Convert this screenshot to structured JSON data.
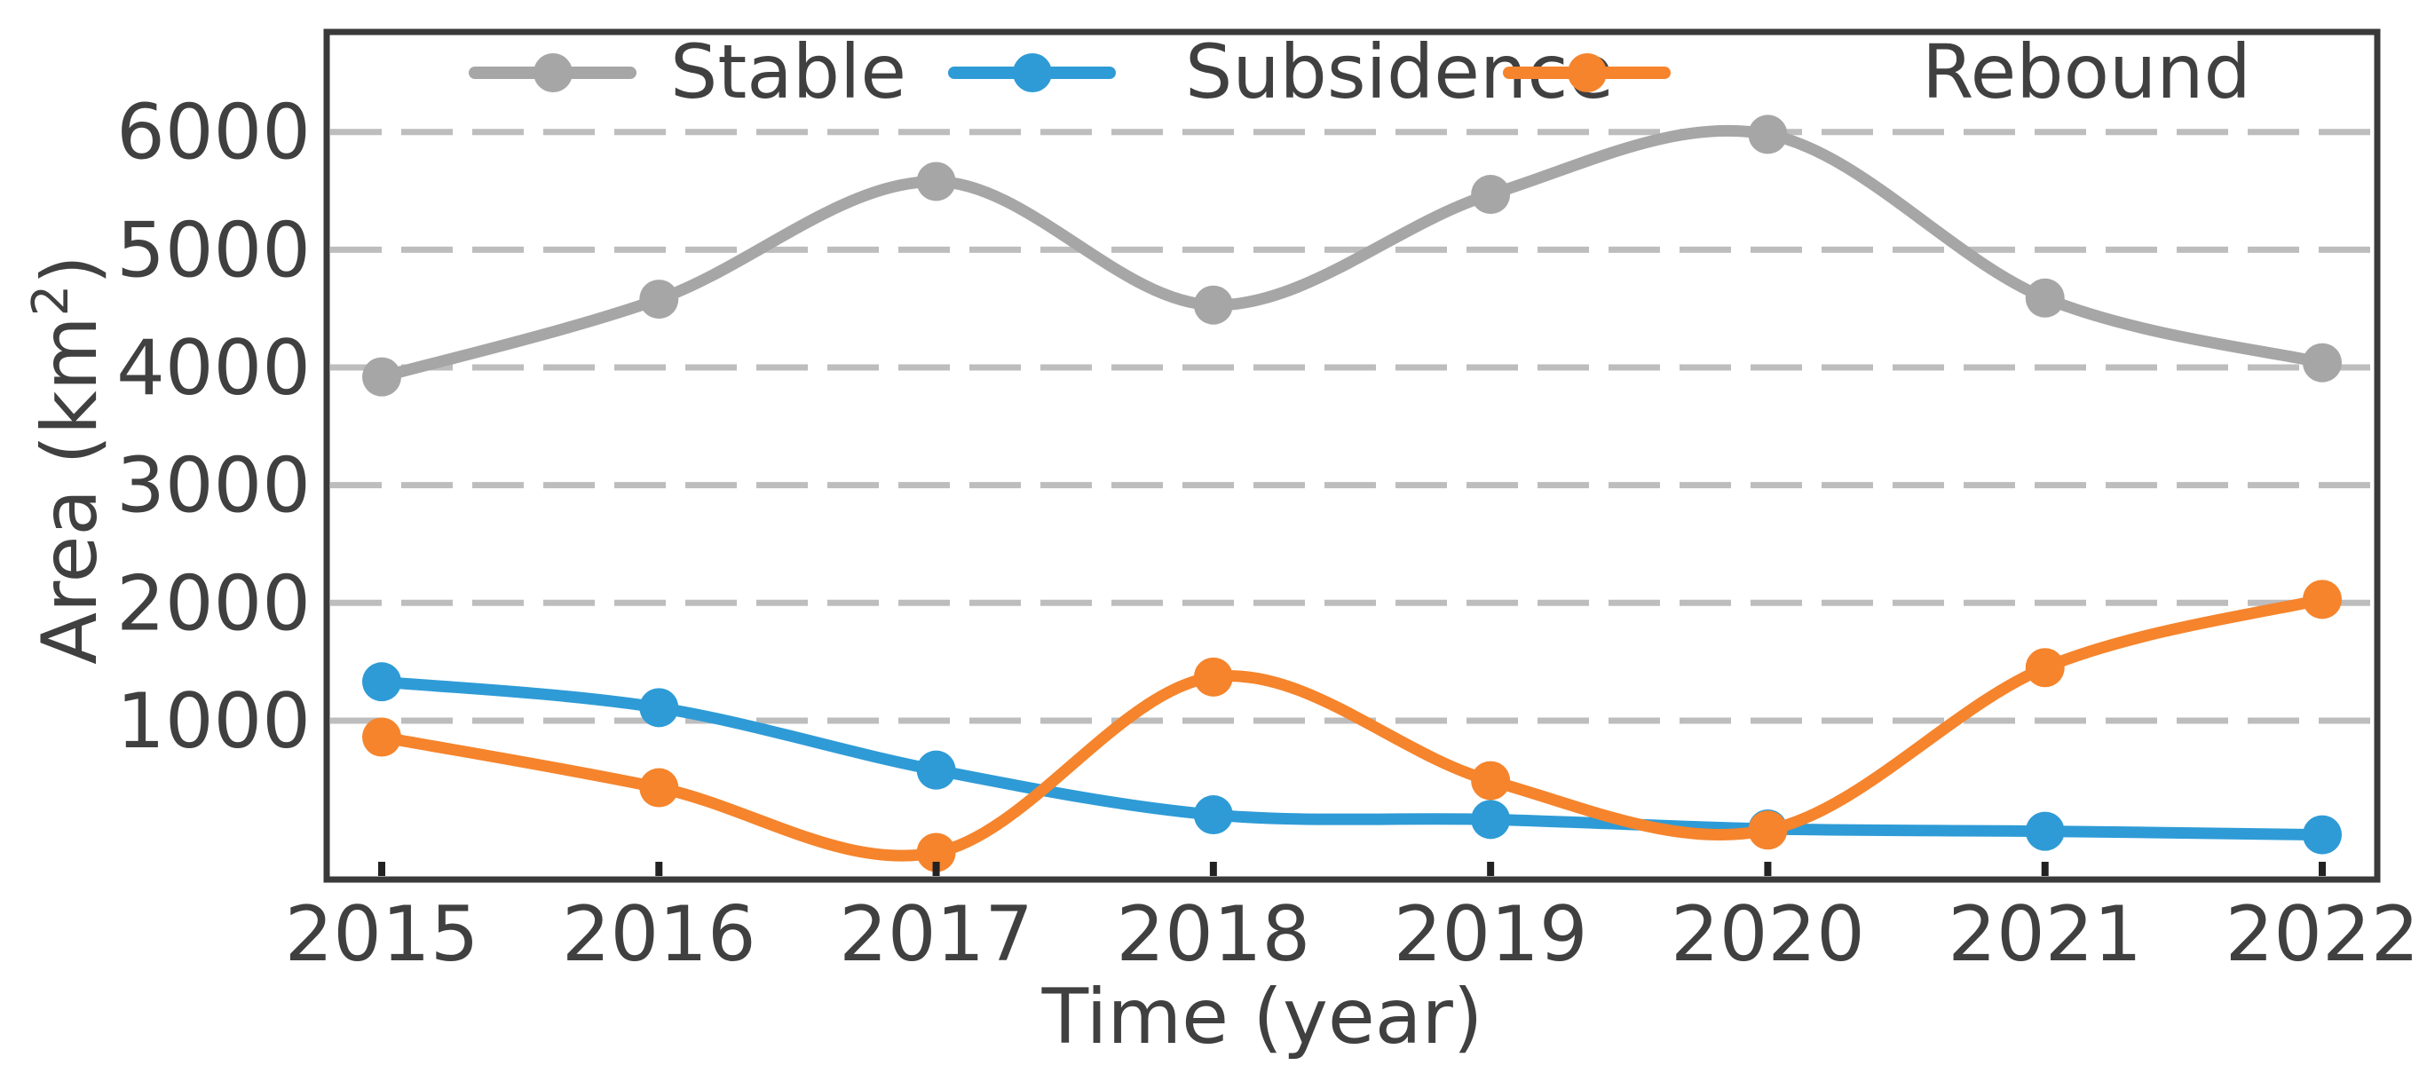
{
  "chart_data": {
    "type": "line",
    "title": "",
    "xlabel": "Time (year)",
    "ylabel": {
      "prefix": "Area (km",
      "superscript": "2",
      "suffix": ")"
    },
    "x": [
      2015,
      2016,
      2017,
      2018,
      2019,
      2020,
      2021,
      2022
    ],
    "ylim": [
      -350,
      6850
    ],
    "yticks": [
      1000,
      2000,
      3000,
      4000,
      5000,
      6000
    ],
    "grid": {
      "horizontal": true,
      "style": "dashed",
      "color": "#bdbdbd"
    },
    "legend": {
      "placement": "top",
      "orientation": "horizontal"
    },
    "series": [
      {
        "name": "Stable",
        "color": "#a6a6a6",
        "values": [
          3920,
          4580,
          5580,
          4530,
          5470,
          5980,
          4590,
          4040
        ]
      },
      {
        "name": "Subsidence",
        "color": "#2e9bd6",
        "values": [
          1330,
          1110,
          580,
          200,
          160,
          80,
          60,
          30
        ]
      },
      {
        "name": "Rebound",
        "color": "#f5842c",
        "values": [
          860,
          430,
          -120,
          1370,
          490,
          70,
          1450,
          2030
        ]
      }
    ]
  }
}
